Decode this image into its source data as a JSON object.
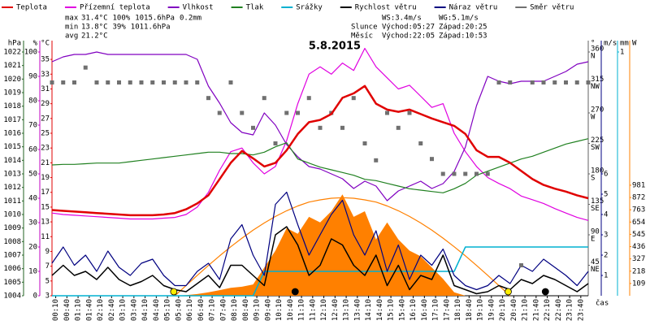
{
  "chart_data": {
    "type": "line",
    "title": "5.8.2015",
    "x_label": "čas",
    "xlim": [
      0,
      1440
    ],
    "x": [
      0,
      30,
      60,
      90,
      120,
      150,
      180,
      210,
      240,
      270,
      300,
      330,
      360,
      390,
      420,
      450,
      480,
      510,
      540,
      570,
      600,
      630,
      660,
      690,
      720,
      750,
      780,
      810,
      840,
      870,
      900,
      930,
      960,
      990,
      1020,
      1050,
      1080,
      1110,
      1140,
      1170,
      1200,
      1230,
      1260,
      1290,
      1320,
      1350,
      1380,
      1410,
      1440
    ],
    "xticks": [
      {
        "value": 10,
        "label": "00:10"
      },
      {
        "value": 40,
        "label": "00:40"
      },
      {
        "value": 70,
        "label": "01:10"
      },
      {
        "value": 100,
        "label": "01:40"
      },
      {
        "value": 130,
        "label": "02:10"
      },
      {
        "value": 160,
        "label": "02:40"
      },
      {
        "value": 190,
        "label": "03:10"
      },
      {
        "value": 220,
        "label": "03:40"
      },
      {
        "value": 250,
        "label": "04:10"
      },
      {
        "value": 280,
        "label": "04:40"
      },
      {
        "value": 310,
        "label": "05:10"
      },
      {
        "value": 340,
        "label": "05:40"
      },
      {
        "value": 370,
        "label": "06:10"
      },
      {
        "value": 400,
        "label": "06:40"
      },
      {
        "value": 430,
        "label": "07:10"
      },
      {
        "value": 460,
        "label": "07:40"
      },
      {
        "value": 490,
        "label": "08:10"
      },
      {
        "value": 520,
        "label": "08:40"
      },
      {
        "value": 550,
        "label": "09:10"
      },
      {
        "value": 580,
        "label": "09:40"
      },
      {
        "value": 610,
        "label": "10:10"
      },
      {
        "value": 640,
        "label": "10:40"
      },
      {
        "value": 670,
        "label": "11:10"
      },
      {
        "value": 700,
        "label": "11:40"
      },
      {
        "value": 730,
        "label": "12:10"
      },
      {
        "value": 760,
        "label": "12:40"
      },
      {
        "value": 790,
        "label": "13:10"
      },
      {
        "value": 820,
        "label": "13:40"
      },
      {
        "value": 850,
        "label": "14:10"
      },
      {
        "value": 880,
        "label": "14:40"
      },
      {
        "value": 910,
        "label": "15:10"
      },
      {
        "value": 940,
        "label": "15:40"
      },
      {
        "value": 970,
        "label": "16:10"
      },
      {
        "value": 1000,
        "label": "16:40"
      },
      {
        "value": 1030,
        "label": "17:10"
      },
      {
        "value": 1060,
        "label": "17:40"
      },
      {
        "value": 1090,
        "label": "18:10"
      },
      {
        "value": 1120,
        "label": "18:40"
      },
      {
        "value": 1150,
        "label": "19:10"
      },
      {
        "value": 1180,
        "label": "19:40"
      },
      {
        "value": 1210,
        "label": "20:10"
      },
      {
        "value": 1240,
        "label": "20:40"
      },
      {
        "value": 1270,
        "label": "21:10"
      },
      {
        "value": 1300,
        "label": "21:40"
      },
      {
        "value": 1330,
        "label": "22:10"
      },
      {
        "value": 1360,
        "label": "22:40"
      },
      {
        "value": 1390,
        "label": "23:10"
      },
      {
        "value": 1420,
        "label": "23:40"
      }
    ],
    "axes": {
      "press": {
        "unit": "hPa",
        "side": "left",
        "color": "#206020",
        "lim": [
          1004,
          1022
        ],
        "ticks": [
          1004,
          1005,
          1006,
          1007,
          1008,
          1009,
          1010,
          1011,
          1012,
          1013,
          1014,
          1015,
          1016,
          1017,
          1018,
          1019,
          1020,
          1021,
          1022
        ]
      },
      "hum": {
        "unit": "%",
        "side": "left",
        "color": "#c000c0",
        "lim": [
          0,
          100
        ],
        "ticks": [
          0,
          10,
          20,
          30,
          40,
          50,
          60,
          70,
          80,
          90,
          100
        ]
      },
      "temp": {
        "unit": "°C",
        "side": "left",
        "color": "#e00000",
        "lim": [
          3,
          36
        ],
        "ticks": [
          3,
          5,
          7,
          9,
          11,
          13,
          15,
          17,
          19,
          21,
          23,
          25,
          27,
          29,
          31,
          33,
          35
        ]
      },
      "dir": {
        "unit": "°",
        "side": "right",
        "color": "#606060",
        "lim": [
          0,
          360
        ],
        "ticks": [
          {
            "value": 45,
            "label": "NE"
          },
          {
            "value": 90,
            "label": "E"
          },
          {
            "value": 135,
            "label": "SE"
          },
          {
            "value": 180,
            "label": "S"
          },
          {
            "value": 225,
            "label": "SW"
          },
          {
            "value": 270,
            "label": "W"
          },
          {
            "value": 315,
            "label": "NW"
          },
          {
            "value": 360,
            "label": "N"
          }
        ]
      },
      "wind": {
        "unit": "m/s",
        "side": "right",
        "color": "#000080",
        "lim": [
          0,
          12
        ],
        "ticks": [
          1,
          2,
          3,
          4,
          5,
          6
        ]
      },
      "precip": {
        "unit": "mm",
        "side": "right",
        "color": "#00b0d0",
        "lim": [
          0,
          1
        ],
        "ticks": [
          1
        ]
      },
      "rad": {
        "unit": "W",
        "side": "right",
        "color": "#ff8000",
        "lim": [
          0,
          2163
        ],
        "ticks": [
          109,
          218,
          327,
          436,
          545,
          654,
          763,
          872,
          981
        ]
      }
    },
    "series": [
      {
        "axis": "rad",
        "style": "area",
        "color": "#ff8000",
        "values": [
          0,
          0,
          0,
          0,
          0,
          0,
          0,
          0,
          0,
          0,
          0,
          0,
          5,
          15,
          30,
          50,
          70,
          80,
          100,
          250,
          400,
          600,
          550,
          700,
          650,
          750,
          900,
          700,
          750,
          500,
          650,
          500,
          400,
          350,
          250,
          150,
          30,
          0,
          0,
          0,
          0,
          0,
          0,
          0,
          0,
          0,
          0,
          0,
          0
        ]
      },
      {
        "axis": "rad",
        "style": "line",
        "color": "#ff8000",
        "values": [
          null,
          null,
          null,
          null,
          null,
          null,
          null,
          null,
          null,
          null,
          null,
          0,
          91,
          181,
          269,
          354,
          435,
          511,
          582,
          646,
          704,
          754,
          797,
          831,
          851,
          865,
          870,
          865,
          851,
          831,
          797,
          754,
          704,
          646,
          582,
          511,
          435,
          354,
          269,
          181,
          91,
          0,
          null,
          null,
          null,
          null,
          null,
          null,
          null
        ]
      },
      {
        "name": "Teplota",
        "axis": "temp",
        "style": "line",
        "width": 2.5,
        "color": "#e00000",
        "values": [
          14.6,
          14.5,
          14.4,
          14.3,
          14.2,
          14.1,
          14.0,
          13.9,
          13.9,
          13.9,
          14.0,
          14.2,
          14.7,
          15.5,
          16.6,
          18.8,
          21.0,
          22.6,
          21.6,
          20.5,
          21.0,
          22.7,
          24.9,
          26.5,
          26.8,
          27.6,
          29.8,
          30.4,
          31.4,
          29.0,
          28.2,
          27.9,
          28.2,
          27.6,
          27.0,
          26.5,
          26.0,
          24.9,
          22.7,
          21.8,
          21.8,
          21.0,
          19.9,
          18.8,
          18.0,
          17.5,
          17.1,
          16.6,
          16.2
        ]
      },
      {
        "name": "Přízemní teplota",
        "axis": "temp",
        "style": "line",
        "color": "#e000e0",
        "values": [
          14.2,
          14.0,
          13.9,
          13.8,
          13.7,
          13.6,
          13.5,
          13.4,
          13.4,
          13.4,
          13.5,
          13.6,
          14.0,
          15.0,
          17.0,
          20.0,
          22.5,
          23.0,
          21.0,
          19.5,
          20.5,
          24.0,
          29.0,
          33.0,
          34.0,
          33.0,
          34.5,
          33.5,
          36.5,
          34.0,
          32.5,
          31.0,
          31.5,
          30.0,
          28.5,
          29.0,
          25.0,
          22.5,
          20.5,
          19.0,
          18.2,
          17.5,
          16.5,
          16.0,
          15.5,
          14.8,
          14.2,
          13.6,
          13.2
        ]
      },
      {
        "name": "Vlhkost",
        "axis": "hum",
        "style": "line",
        "color": "#8000c0",
        "values": [
          96,
          98,
          99,
          99,
          100,
          99,
          99,
          99,
          99,
          99,
          99,
          99,
          99,
          97,
          86,
          79,
          71,
          67,
          66,
          75,
          70,
          62,
          57,
          53,
          52,
          50,
          48,
          44,
          47,
          45,
          39,
          43,
          45,
          47,
          44,
          46,
          51,
          61,
          78,
          90,
          88,
          87,
          88,
          88,
          88,
          90,
          92,
          95,
          96
        ]
      },
      {
        "name": "Tlak",
        "axis": "press",
        "style": "line",
        "color": "#208020",
        "values": [
          1013.66,
          1013.7,
          1013.7,
          1013.75,
          1013.8,
          1013.8,
          1013.8,
          1013.9,
          1014.0,
          1014.1,
          1014.2,
          1014.3,
          1014.4,
          1014.5,
          1014.6,
          1014.6,
          1014.5,
          1014.5,
          1014.4,
          1014.6,
          1015.0,
          1015.3,
          1014.1,
          1013.8,
          1013.5,
          1013.3,
          1013.1,
          1012.9,
          1012.6,
          1012.5,
          1012.3,
          1012.1,
          1011.9,
          1011.8,
          1011.7,
          1011.6,
          1011.9,
          1012.3,
          1012.9,
          1013.2,
          1013.5,
          1013.8,
          1014.1,
          1014.3,
          1014.6,
          1014.9,
          1015.2,
          1015.4,
          1015.6
        ]
      },
      {
        "name": "Srážky",
        "axis": "precip",
        "style": "line",
        "width": 1.5,
        "color": "#00b0d0",
        "values": [
          0,
          0,
          0,
          0,
          0,
          0,
          0,
          0,
          0,
          0,
          0,
          0,
          0,
          0,
          0,
          0,
          0,
          0,
          0,
          0.1,
          0.1,
          0.1,
          0.1,
          0.1,
          0.1,
          0.1,
          0.1,
          0.1,
          0.1,
          0.1,
          0.1,
          0.1,
          0.1,
          0.1,
          0.1,
          0.1,
          0.1,
          0.2,
          0.2,
          0.2,
          0.2,
          0.2,
          0.2,
          0.2,
          0.2,
          0.2,
          0.2,
          0.2,
          0.2
        ]
      },
      {
        "name": "Rychlost větru",
        "axis": "wind",
        "style": "line",
        "width": 1.5,
        "color": "#000000",
        "values": [
          1.0,
          1.5,
          1.0,
          1.2,
          0.8,
          1.4,
          0.8,
          0.5,
          0.7,
          1.0,
          0.5,
          0.3,
          0.2,
          0.6,
          1.0,
          0.4,
          1.5,
          1.5,
          1.0,
          0.5,
          3.0,
          3.4,
          2.5,
          1.0,
          1.5,
          2.8,
          2.5,
          1.5,
          1.0,
          2.0,
          0.5,
          1.5,
          0.3,
          1.0,
          0.8,
          2.0,
          0.5,
          0.3,
          0.1,
          0.2,
          0.5,
          0.3,
          0.8,
          0.6,
          1.0,
          0.8,
          0.5,
          0.2,
          0.6
        ]
      },
      {
        "name": "Náraz větru",
        "axis": "wind",
        "style": "line",
        "color": "#000080",
        "values": [
          1.6,
          2.4,
          1.5,
          2.0,
          1.2,
          2.2,
          1.4,
          1.0,
          1.6,
          1.8,
          1.0,
          0.5,
          0.5,
          1.2,
          1.6,
          0.8,
          2.8,
          3.5,
          2.0,
          1.0,
          4.5,
          5.1,
          3.5,
          2.0,
          3.0,
          4.0,
          4.7,
          3.0,
          2.0,
          3.2,
          1.2,
          2.5,
          0.8,
          2.0,
          1.5,
          2.3,
          1.0,
          0.5,
          0.3,
          0.5,
          1.0,
          0.6,
          1.5,
          1.2,
          1.8,
          1.4,
          1.0,
          0.5,
          1.2
        ]
      },
      {
        "name": "Směr větru",
        "axis": "dir",
        "style": "markers",
        "color": "#707070",
        "values": [
          315,
          315,
          315,
          337,
          315,
          315,
          315,
          315,
          315,
          315,
          315,
          315,
          315,
          315,
          292,
          270,
          315,
          270,
          248,
          292,
          225,
          270,
          270,
          292,
          248,
          270,
          248,
          292,
          225,
          200,
          270,
          248,
          270,
          225,
          202,
          180,
          180,
          180,
          180,
          180,
          315,
          315,
          45,
          315,
          315,
          315,
          315,
          315,
          315
        ]
      }
    ],
    "stats": [
      {
        "label": "max",
        "items": [
          {
            "text": "31.4°C",
            "color": "#e00000"
          },
          {
            "text": "100%",
            "color": "#c000c0"
          },
          {
            "text": "1015.6hPa",
            "color": "#2040c0"
          },
          {
            "text": "0.2mm",
            "color": "#00b0d0"
          }
        ]
      },
      {
        "label": "min",
        "items": [
          {
            "text": "13.8°C",
            "color": "#e00000"
          },
          {
            "text": "39%",
            "color": "#c000c0"
          },
          {
            "text": "1011.6hPa",
            "color": "#2040c0"
          }
        ]
      },
      {
        "label": "avg",
        "items": [
          {
            "text": "21.2°C",
            "color": "#e00000"
          }
        ]
      }
    ],
    "wind_stats": [
      "WS:3.4m/s",
      "WG:5.1m/s"
    ],
    "sun": {
      "label": "Slunce",
      "rise": "Východ:05:27",
      "set": "Západ:20:25",
      "color": "#ffee00"
    },
    "moon": {
      "label": "Měsíc",
      "rise": "Východ:22:05",
      "set": "Západ:10:53",
      "color": "#000000"
    }
  }
}
